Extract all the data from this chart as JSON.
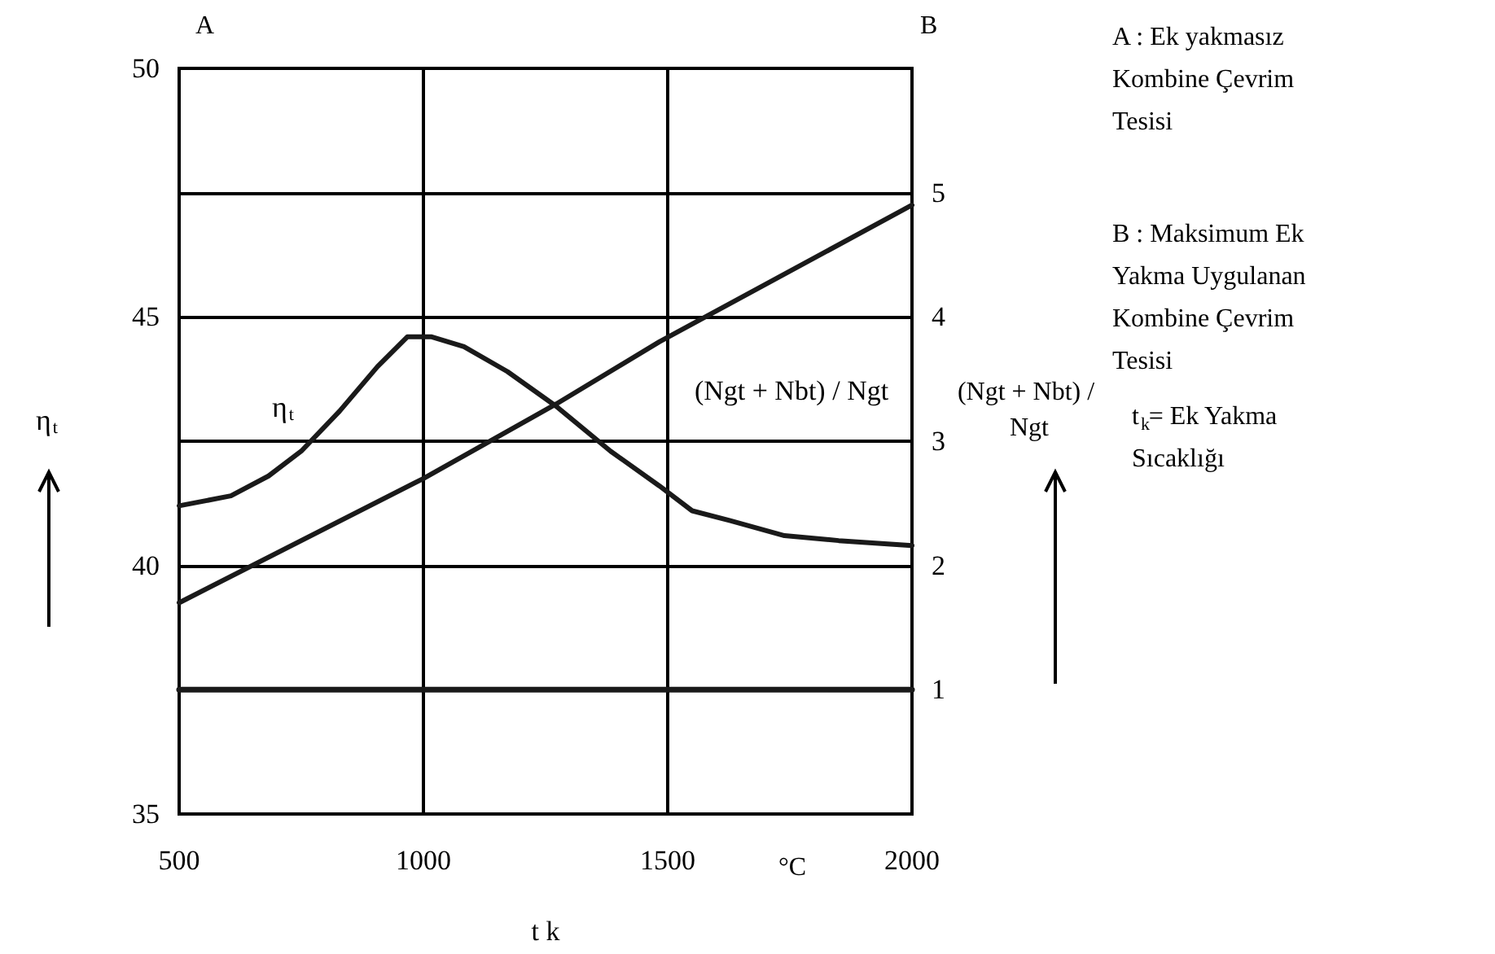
{
  "chart_data": {
    "type": "line",
    "xlabel": "t k",
    "ylabel": "η$_{t}$",
    "y2label": "(Ngt + Nbt) / Ngt",
    "xlim": [
      500,
      2000
    ],
    "xticks": [
      500,
      1000,
      1500,
      2000
    ],
    "ylim": [
      35,
      50
    ],
    "yticks": [
      35,
      40,
      45,
      50
    ],
    "y2lim": [
      0,
      6
    ],
    "y2ticks": [
      1,
      2,
      3,
      4,
      5
    ],
    "grid": true,
    "marker": "none",
    "line_style": "solid",
    "series": [
      {
        "name": "η$_{t}$",
        "color": "#1a1a1a",
        "x": [
          500,
          606,
          683,
          750,
          828,
          906,
          967,
          1017,
          1083,
          1172,
          1272,
          1383,
          1483,
          1550,
          1628,
          1739,
          1850,
          2000
        ],
        "values": [
          41.2,
          41.4,
          41.8,
          42.3,
          43.1,
          44.0,
          44.6,
          44.6,
          44.4,
          43.9,
          43.2,
          42.3,
          41.6,
          41.1,
          40.9,
          40.6,
          40.5,
          40.4
        ]
      },
      {
        "name": "(Ngt + Nbt) / Ngt",
        "color": "#1a1a1a",
        "axis": "y2",
        "x": [
          500,
          1000,
          1272,
          1483,
          2000
        ],
        "values": [
          1.7,
          2.7,
          3.3,
          3.8,
          4.9
        ]
      },
      {
        "color": "#1a1a1a",
        "axis": "y2",
        "x": [
          500,
          2000
        ],
        "values": [
          1,
          1
        ]
      }
    ],
    "annotations": [
      "A",
      "B",
      "°C",
      "A : Ek yakmasız Kombine Çevrim Tesisi",
      "B : Maksimum Ek Yakma Uygulanan Kombine Çevrim Tesisi",
      "t$_{k}$= Ek Yakma Sıcaklığı"
    ]
  }
}
